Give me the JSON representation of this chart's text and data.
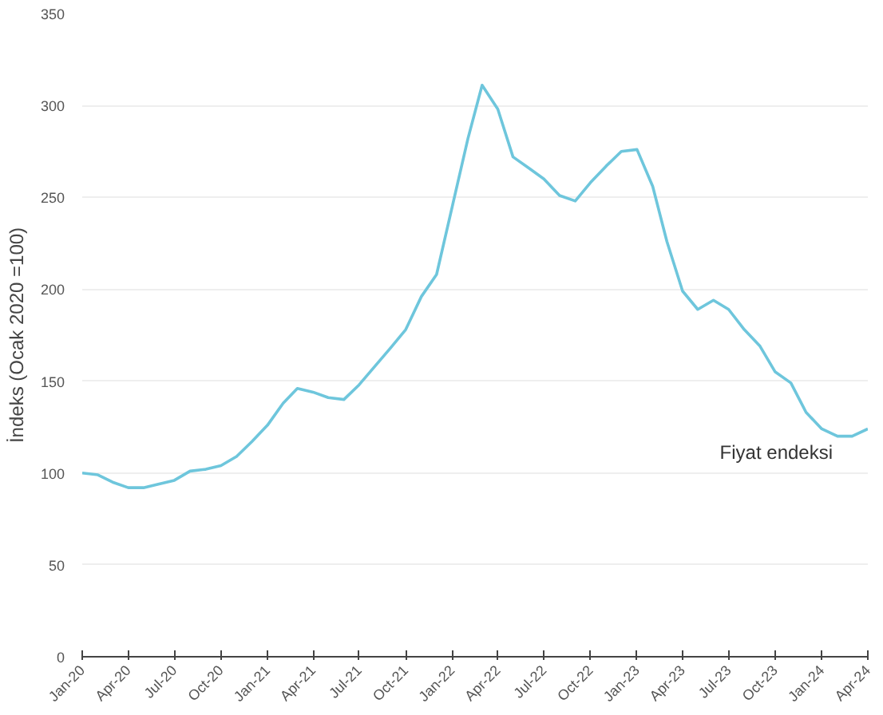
{
  "chart_data": {
    "type": "line",
    "ylabel": "İndeks (Ocak 2020 =100)",
    "x": [
      "2020-01",
      "2020-02",
      "2020-03",
      "2020-04",
      "2020-05",
      "2020-06",
      "2020-07",
      "2020-08",
      "2020-09",
      "2020-10",
      "2020-11",
      "2020-12",
      "2021-01",
      "2021-02",
      "2021-03",
      "2021-04",
      "2021-05",
      "2021-06",
      "2021-07",
      "2021-08",
      "2021-09",
      "2021-10",
      "2021-11",
      "2021-12",
      "2022-01",
      "2022-02",
      "2022-03",
      "2022-04",
      "2022-05",
      "2022-06",
      "2022-07",
      "2022-08",
      "2022-09",
      "2022-10",
      "2022-11",
      "2022-12",
      "2023-01",
      "2023-02",
      "2023-03",
      "2023-04",
      "2023-05",
      "2023-06",
      "2023-07",
      "2023-08",
      "2023-09",
      "2023-10",
      "2023-11",
      "2023-12",
      "2024-01",
      "2024-02",
      "2024-03",
      "2024-04"
    ],
    "series": [
      {
        "name": "Fiyat endeksi",
        "color": "#6ec6dc",
        "values": [
          100,
          99,
          95,
          92,
          92,
          94,
          96,
          101,
          102,
          104,
          109,
          117,
          126,
          138,
          146,
          144,
          141,
          140,
          148,
          158,
          168,
          178,
          196,
          208,
          245,
          282,
          311,
          298,
          272,
          266,
          260,
          251,
          248,
          258,
          267,
          275,
          276,
          256,
          226,
          199,
          189,
          194,
          189,
          178,
          169,
          155,
          149,
          133,
          124,
          120,
          120,
          124
        ]
      }
    ],
    "xlim": [
      "2020-01",
      "2024-04"
    ],
    "xticks": [
      {
        "value": "2020-01",
        "label": "Jan-20"
      },
      {
        "value": "2020-04",
        "label": "Apr-20"
      },
      {
        "value": "2020-07",
        "label": "Jul-20"
      },
      {
        "value": "2020-10",
        "label": "Oct-20"
      },
      {
        "value": "2021-01",
        "label": "Jan-21"
      },
      {
        "value": "2021-04",
        "label": "Apr-21"
      },
      {
        "value": "2021-07",
        "label": "Jul-21"
      },
      {
        "value": "2021-10",
        "label": "Oct-21"
      },
      {
        "value": "2022-01",
        "label": "Jan-22"
      },
      {
        "value": "2022-04",
        "label": "Apr-22"
      },
      {
        "value": "2022-07",
        "label": "Jul-22"
      },
      {
        "value": "2022-10",
        "label": "Oct-22"
      },
      {
        "value": "2023-01",
        "label": "Jan-23"
      },
      {
        "value": "2023-04",
        "label": "Apr-23"
      },
      {
        "value": "2023-07",
        "label": "Jul-23"
      },
      {
        "value": "2023-10",
        "label": "Oct-23"
      },
      {
        "value": "2024-01",
        "label": "Jan-24"
      },
      {
        "value": "2024-04",
        "label": "Apr-24"
      }
    ],
    "ylim": [
      0,
      350
    ],
    "yticks": [
      0,
      50,
      100,
      150,
      200,
      250,
      300,
      350
    ],
    "grid": "y",
    "legend": false,
    "marker": "none",
    "line_style": "solid"
  }
}
